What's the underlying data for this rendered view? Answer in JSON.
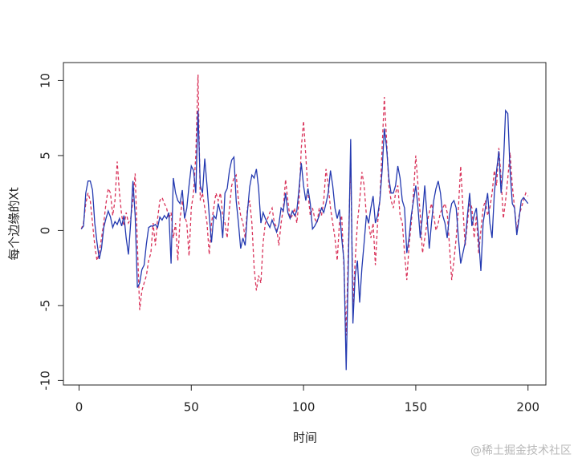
{
  "chart_data": {
    "type": "line",
    "xlabel": "时间",
    "ylabel": "每个边缘的Xt",
    "watermark": "@稀土掘金技术社区",
    "x": [
      1,
      2,
      3,
      4,
      5,
      6,
      7,
      8,
      9,
      10,
      11,
      12,
      13,
      14,
      15,
      16,
      17,
      18,
      19,
      20,
      21,
      22,
      23,
      24,
      25,
      26,
      27,
      28,
      29,
      30,
      31,
      32,
      33,
      34,
      35,
      36,
      37,
      38,
      39,
      40,
      41,
      42,
      43,
      44,
      45,
      46,
      47,
      48,
      49,
      50,
      51,
      52,
      53,
      54,
      55,
      56,
      57,
      58,
      59,
      60,
      61,
      62,
      63,
      64,
      65,
      66,
      67,
      68,
      69,
      70,
      71,
      72,
      73,
      74,
      75,
      76,
      77,
      78,
      79,
      80,
      81,
      82,
      83,
      84,
      85,
      86,
      87,
      88,
      89,
      90,
      91,
      92,
      93,
      94,
      95,
      96,
      97,
      98,
      99,
      100,
      101,
      102,
      103,
      104,
      105,
      106,
      107,
      108,
      109,
      110,
      111,
      112,
      113,
      114,
      115,
      116,
      117,
      118,
      119,
      120,
      121,
      122,
      123,
      124,
      125,
      126,
      127,
      128,
      129,
      130,
      131,
      132,
      133,
      134,
      135,
      136,
      137,
      138,
      139,
      140,
      141,
      142,
      143,
      144,
      145,
      146,
      147,
      148,
      149,
      150,
      151,
      152,
      153,
      154,
      155,
      156,
      157,
      158,
      159,
      160,
      161,
      162,
      163,
      164,
      165,
      166,
      167,
      168,
      169,
      170,
      171,
      172,
      173,
      174,
      175,
      176,
      177,
      178,
      179,
      180,
      181,
      182,
      183,
      184,
      185,
      186,
      187,
      188,
      189,
      190,
      191,
      192,
      193,
      194,
      195,
      196,
      197,
      198,
      199,
      200
    ],
    "series": [
      {
        "color": "#2339b0",
        "dash": false,
        "values": [
          0.1,
          0.3,
          2.5,
          3.3,
          3.3,
          2.7,
          0.5,
          -0.8,
          -1.9,
          -1.2,
          0.2,
          0.8,
          1.3,
          0.9,
          0.2,
          0.6,
          0.4,
          0.8,
          0.3,
          1.0,
          -0.5,
          -1.6,
          0.5,
          3.3,
          1.0,
          -3.8,
          -3.5,
          -2.6,
          -2.3,
          -0.9,
          0.2,
          0.3,
          0.3,
          0.4,
          0.2,
          0.9,
          0.7,
          1.0,
          0.8,
          1.2,
          -2.2,
          3.5,
          2.5,
          2.0,
          1.8,
          2.7,
          0.8,
          1.5,
          3.0,
          4.3,
          4.0,
          2.5,
          8.0,
          3.0,
          2.5,
          4.8,
          3.0,
          1.0,
          -0.8,
          1.0,
          0.8,
          1.8,
          1.2,
          -0.5,
          2.5,
          2.8,
          4.0,
          4.7,
          4.9,
          2.0,
          0.5,
          -1.2,
          -0.5,
          -1.0,
          1.2,
          2.9,
          3.7,
          3.5,
          4.1,
          2.8,
          0.5,
          1.2,
          0.8,
          0.5,
          0.2,
          0.7,
          0.3,
          -0.1,
          0.4,
          1.5,
          1.3,
          2.5,
          1.2,
          0.8,
          1.3,
          1.0,
          1.3,
          2.8,
          4.5,
          3.0,
          2.0,
          2.8,
          1.8,
          0.1,
          0.3,
          0.6,
          1.0,
          1.5,
          1.2,
          1.8,
          2.5,
          4.0,
          3.0,
          1.5,
          0.8,
          1.4,
          -0.5,
          -2.0,
          -9.3,
          -2.0,
          6.1,
          -6.2,
          -3.0,
          -2.0,
          -4.8,
          -2.5,
          -0.8,
          1.0,
          0.5,
          1.5,
          2.3,
          0.5,
          1.0,
          2.0,
          4.0,
          6.8,
          5.5,
          3.5,
          2.5,
          2.5,
          3.0,
          4.3,
          3.5,
          2.0,
          1.5,
          -1.5,
          -0.5,
          1.0,
          2.0,
          3.0,
          1.5,
          -0.5,
          1.0,
          3.0,
          1.0,
          -1.2,
          0.5,
          2.0,
          2.8,
          3.3,
          2.5,
          1.0,
          0.5,
          -0.5,
          1.0,
          1.8,
          2.0,
          1.5,
          -0.5,
          -2.2,
          -1.5,
          -0.8,
          1.0,
          2.5,
          0.3,
          1.0,
          1.5,
          -0.5,
          -2.7,
          0.5,
          1.5,
          2.5,
          0.5,
          -0.5,
          2.5,
          4.0,
          5.3,
          2.5,
          4.2,
          8.0,
          7.8,
          4.0,
          1.8,
          1.5,
          -0.3,
          0.8,
          2.0,
          2.2,
          2.0,
          1.8
        ]
      },
      {
        "color": "#d9335a",
        "dash": true,
        "values": [
          0.1,
          0.5,
          1.8,
          2.5,
          2.0,
          0.5,
          -1.0,
          -2.0,
          -1.5,
          -0.5,
          0.5,
          1.8,
          2.8,
          2.5,
          1.0,
          2.0,
          4.6,
          2.5,
          1.0,
          0.3,
          1.2,
          0.5,
          0.8,
          2.0,
          3.8,
          -1.0,
          -5.3,
          -4.0,
          -3.5,
          -3.0,
          -2.0,
          -1.5,
          0.5,
          -1.0,
          0.8,
          2.0,
          2.2,
          1.8,
          1.5,
          0.8,
          1.2,
          -0.5,
          0.5,
          -2.0,
          0.8,
          2.0,
          1.0,
          0.5,
          -1.7,
          1.5,
          2.5,
          5.0,
          10.4,
          2.0,
          2.5,
          1.5,
          0.5,
          -1.6,
          0.5,
          1.5,
          2.5,
          2.0,
          2.5,
          1.0,
          0.5,
          -0.5,
          1.5,
          3.0,
          3.5,
          3.7,
          2.0,
          1.0,
          0.5,
          -0.5,
          1.5,
          2.0,
          0.5,
          -2.5,
          -4.0,
          -3.0,
          -3.5,
          -0.8,
          0.5,
          0.8,
          1.2,
          1.5,
          0.5,
          0.2,
          -1.0,
          0.5,
          1.5,
          3.4,
          2.0,
          0.8,
          1.0,
          1.5,
          0.5,
          2.0,
          5.5,
          7.3,
          5.0,
          2.5,
          1.0,
          1.5,
          0.8,
          0.5,
          1.5,
          1.0,
          2.0,
          4.1,
          3.0,
          1.5,
          0.5,
          -0.5,
          -2.0,
          0.5,
          1.0,
          -2.5,
          -7.0,
          -1.0,
          4.9,
          -5.0,
          -2.0,
          0.5,
          2.0,
          3.9,
          3.0,
          1.0,
          0.5,
          -0.5,
          0.5,
          -2.3,
          0.5,
          2.0,
          5.5,
          8.9,
          6.0,
          3.0,
          2.0,
          1.5,
          2.5,
          3.0,
          1.0,
          0.5,
          -1.5,
          -3.3,
          -1.0,
          0.5,
          2.5,
          5.0,
          3.0,
          1.0,
          -1.5,
          -0.5,
          0.5,
          1.2,
          1.8,
          1.0,
          0.0,
          0.5,
          1.2,
          1.5,
          1.8,
          1.2,
          -1.0,
          -3.3,
          -2.0,
          -0.5,
          1.5,
          4.3,
          1.5,
          -1.0,
          0.5,
          2.0,
          1.5,
          -0.5,
          1.0,
          -1.5,
          0.0,
          1.5,
          2.0,
          1.0,
          1.5,
          2.5,
          4.0,
          3.0,
          5.5,
          3.5,
          0.8,
          2.0,
          3.5,
          5.2,
          3.0,
          1.5,
          0.0,
          1.0,
          1.5,
          2.0,
          2.5,
          2.3
        ]
      }
    ],
    "xlim": [
      -6.96,
      207.96
    ],
    "ylim": [
      -10.3,
      11.2
    ],
    "xticks": [
      0,
      50,
      100,
      150,
      200
    ],
    "yticks": [
      -10,
      -5,
      0,
      5,
      10
    ]
  }
}
